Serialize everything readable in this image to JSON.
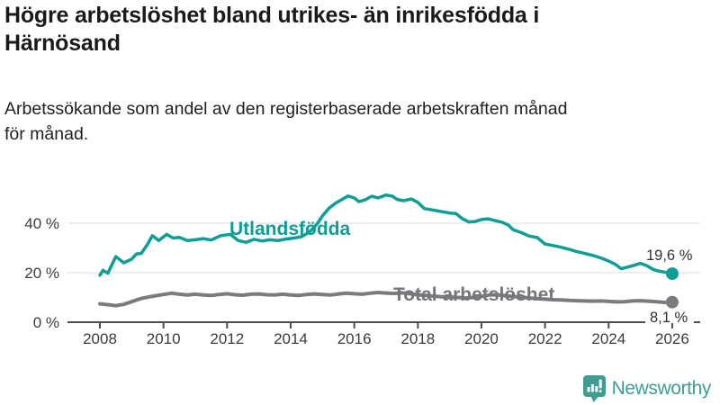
{
  "header": {
    "title_lines": [
      "Högre arbetslöshet bland utrikes- än inrikesfödda i",
      "Härnösand"
    ],
    "subtitle_lines": [
      "Arbetssökande som andel av den registerbaserade arbetskraften månad",
      "för månad."
    ]
  },
  "footer": {
    "brand": "Newsworthy"
  },
  "colors": {
    "foreign_born": "#0f9e96",
    "total": "#7b7b7f",
    "brand_teal": "#3f9c92",
    "gridline": "#e3e3e3",
    "axis": "#4d4d4d"
  },
  "chart_data": {
    "type": "line",
    "title": "Högre arbetslöshet bland utrikes- än inrikesfödda i Härnösand",
    "subtitle": "Arbetssökande som andel av den registerbaserade arbetskraften månad för månad.",
    "xlabel": "",
    "ylabel": "",
    "xlim": [
      2007.5,
      2026.9
    ],
    "ylim": [
      0,
      55
    ],
    "grid": "horizontal",
    "legend_position": "inline-labels",
    "axes": {
      "y_ticks": [
        {
          "value": 0,
          "label": "0 %"
        },
        {
          "value": 20,
          "label": "20 %"
        },
        {
          "value": 40,
          "label": "40 %"
        }
      ],
      "x_ticks": [
        {
          "value": 2008,
          "label": "2008"
        },
        {
          "value": 2010,
          "label": "2010"
        },
        {
          "value": 2012,
          "label": "2012"
        },
        {
          "value": 2014,
          "label": "2014"
        },
        {
          "value": 2016,
          "label": "2016"
        },
        {
          "value": 2018,
          "label": "2018"
        },
        {
          "value": 2020,
          "label": "2020"
        },
        {
          "value": 2022,
          "label": "2022"
        },
        {
          "value": 2024,
          "label": "2024"
        },
        {
          "value": 2026,
          "label": "2026"
        }
      ]
    },
    "series": [
      {
        "name": "Utlandsfödda",
        "color": "#0f9e96",
        "end_label": "19,6 %",
        "end_value": 19.6,
        "points": [
          [
            2008.0,
            19.0
          ],
          [
            2008.1,
            21.0
          ],
          [
            2008.25,
            19.8
          ],
          [
            2008.5,
            26.5
          ],
          [
            2008.75,
            24.0
          ],
          [
            2009.0,
            25.5
          ],
          [
            2009.15,
            27.6
          ],
          [
            2009.3,
            27.8
          ],
          [
            2009.5,
            31.5
          ],
          [
            2009.65,
            35.0
          ],
          [
            2009.85,
            33.0
          ],
          [
            2010.1,
            35.5
          ],
          [
            2010.3,
            34.0
          ],
          [
            2010.5,
            34.3
          ],
          [
            2010.75,
            33.0
          ],
          [
            2011.0,
            33.3
          ],
          [
            2011.25,
            33.8
          ],
          [
            2011.5,
            33.2
          ],
          [
            2011.8,
            35.0
          ],
          [
            2012.1,
            35.5
          ],
          [
            2012.35,
            33.0
          ],
          [
            2012.6,
            32.3
          ],
          [
            2012.85,
            33.5
          ],
          [
            2013.1,
            32.8
          ],
          [
            2013.35,
            33.3
          ],
          [
            2013.6,
            33.0
          ],
          [
            2013.85,
            33.6
          ],
          [
            2014.1,
            34.0
          ],
          [
            2014.35,
            34.6
          ],
          [
            2014.6,
            36.5
          ],
          [
            2014.85,
            40.0
          ],
          [
            2015.0,
            43.0
          ],
          [
            2015.2,
            46.0
          ],
          [
            2015.4,
            48.0
          ],
          [
            2015.6,
            49.5
          ],
          [
            2015.8,
            51.0
          ],
          [
            2016.0,
            50.2
          ],
          [
            2016.15,
            48.7
          ],
          [
            2016.35,
            49.5
          ],
          [
            2016.55,
            50.9
          ],
          [
            2016.75,
            50.2
          ],
          [
            2017.0,
            51.4
          ],
          [
            2017.2,
            50.9
          ],
          [
            2017.35,
            49.6
          ],
          [
            2017.55,
            49.1
          ],
          [
            2017.8,
            49.8
          ],
          [
            2018.0,
            48.4
          ],
          [
            2018.2,
            45.9
          ],
          [
            2018.45,
            45.4
          ],
          [
            2018.7,
            44.8
          ],
          [
            2019.0,
            44.1
          ],
          [
            2019.2,
            43.9
          ],
          [
            2019.4,
            41.8
          ],
          [
            2019.6,
            40.5
          ],
          [
            2019.8,
            40.7
          ],
          [
            2020.0,
            41.5
          ],
          [
            2020.2,
            41.8
          ],
          [
            2020.45,
            41.0
          ],
          [
            2020.65,
            40.4
          ],
          [
            2020.85,
            39.2
          ],
          [
            2021.0,
            37.3
          ],
          [
            2021.25,
            36.2
          ],
          [
            2021.5,
            34.8
          ],
          [
            2021.75,
            34.2
          ],
          [
            2022.0,
            31.6
          ],
          [
            2022.25,
            31.0
          ],
          [
            2022.5,
            30.3
          ],
          [
            2022.75,
            29.5
          ],
          [
            2023.0,
            28.5
          ],
          [
            2023.25,
            27.8
          ],
          [
            2023.5,
            27.0
          ],
          [
            2023.75,
            26.0
          ],
          [
            2024.0,
            24.7
          ],
          [
            2024.2,
            23.5
          ],
          [
            2024.4,
            21.6
          ],
          [
            2024.6,
            22.3
          ],
          [
            2024.8,
            23.0
          ],
          [
            2025.0,
            23.8
          ],
          [
            2025.2,
            22.8
          ],
          [
            2025.4,
            21.3
          ],
          [
            2025.6,
            20.6
          ],
          [
            2025.8,
            20.1
          ],
          [
            2026.0,
            19.6
          ]
        ]
      },
      {
        "name": "Total arbetslöshet",
        "color": "#7b7b7f",
        "end_label": "8,1 %",
        "end_value": 8.1,
        "points": [
          [
            2008.0,
            7.4
          ],
          [
            2008.25,
            7.1
          ],
          [
            2008.5,
            6.7
          ],
          [
            2008.75,
            7.2
          ],
          [
            2009.0,
            8.3
          ],
          [
            2009.25,
            9.4
          ],
          [
            2009.5,
            10.1
          ],
          [
            2009.75,
            10.7
          ],
          [
            2010.0,
            11.2
          ],
          [
            2010.25,
            11.7
          ],
          [
            2010.5,
            11.3
          ],
          [
            2010.75,
            11.0
          ],
          [
            2011.0,
            11.3
          ],
          [
            2011.25,
            11.0
          ],
          [
            2011.5,
            10.8
          ],
          [
            2011.75,
            11.2
          ],
          [
            2012.0,
            11.5
          ],
          [
            2012.25,
            11.1
          ],
          [
            2012.5,
            10.9
          ],
          [
            2012.75,
            11.3
          ],
          [
            2013.0,
            11.4
          ],
          [
            2013.25,
            11.1
          ],
          [
            2013.5,
            11.0
          ],
          [
            2013.75,
            11.3
          ],
          [
            2014.0,
            11.0
          ],
          [
            2014.25,
            10.8
          ],
          [
            2014.5,
            11.2
          ],
          [
            2014.75,
            11.4
          ],
          [
            2015.0,
            11.2
          ],
          [
            2015.25,
            11.0
          ],
          [
            2015.5,
            11.4
          ],
          [
            2015.75,
            11.7
          ],
          [
            2016.0,
            11.5
          ],
          [
            2016.25,
            11.3
          ],
          [
            2016.5,
            11.7
          ],
          [
            2016.75,
            12.0
          ],
          [
            2017.0,
            11.8
          ],
          [
            2017.25,
            11.6
          ],
          [
            2017.5,
            11.9
          ],
          [
            2017.75,
            11.5
          ],
          [
            2018.0,
            11.1
          ],
          [
            2018.25,
            10.8
          ],
          [
            2018.5,
            10.5
          ],
          [
            2018.75,
            10.3
          ],
          [
            2019.0,
            10.2
          ],
          [
            2019.25,
            10.0
          ],
          [
            2019.5,
            9.8
          ],
          [
            2019.75,
            10.0
          ],
          [
            2020.0,
            10.4
          ],
          [
            2020.25,
            11.0
          ],
          [
            2020.5,
            11.1
          ],
          [
            2020.75,
            10.7
          ],
          [
            2021.0,
            10.4
          ],
          [
            2021.25,
            10.1
          ],
          [
            2021.5,
            9.8
          ],
          [
            2021.75,
            9.5
          ],
          [
            2022.0,
            9.3
          ],
          [
            2022.25,
            9.1
          ],
          [
            2022.5,
            9.0
          ],
          [
            2022.75,
            8.8
          ],
          [
            2023.0,
            8.7
          ],
          [
            2023.25,
            8.6
          ],
          [
            2023.5,
            8.5
          ],
          [
            2023.75,
            8.6
          ],
          [
            2024.0,
            8.4
          ],
          [
            2024.25,
            8.2
          ],
          [
            2024.5,
            8.3
          ],
          [
            2024.75,
            8.6
          ],
          [
            2025.0,
            8.7
          ],
          [
            2025.25,
            8.5
          ],
          [
            2025.5,
            8.3
          ],
          [
            2025.75,
            8.0
          ],
          [
            2026.0,
            8.1
          ]
        ]
      }
    ]
  }
}
